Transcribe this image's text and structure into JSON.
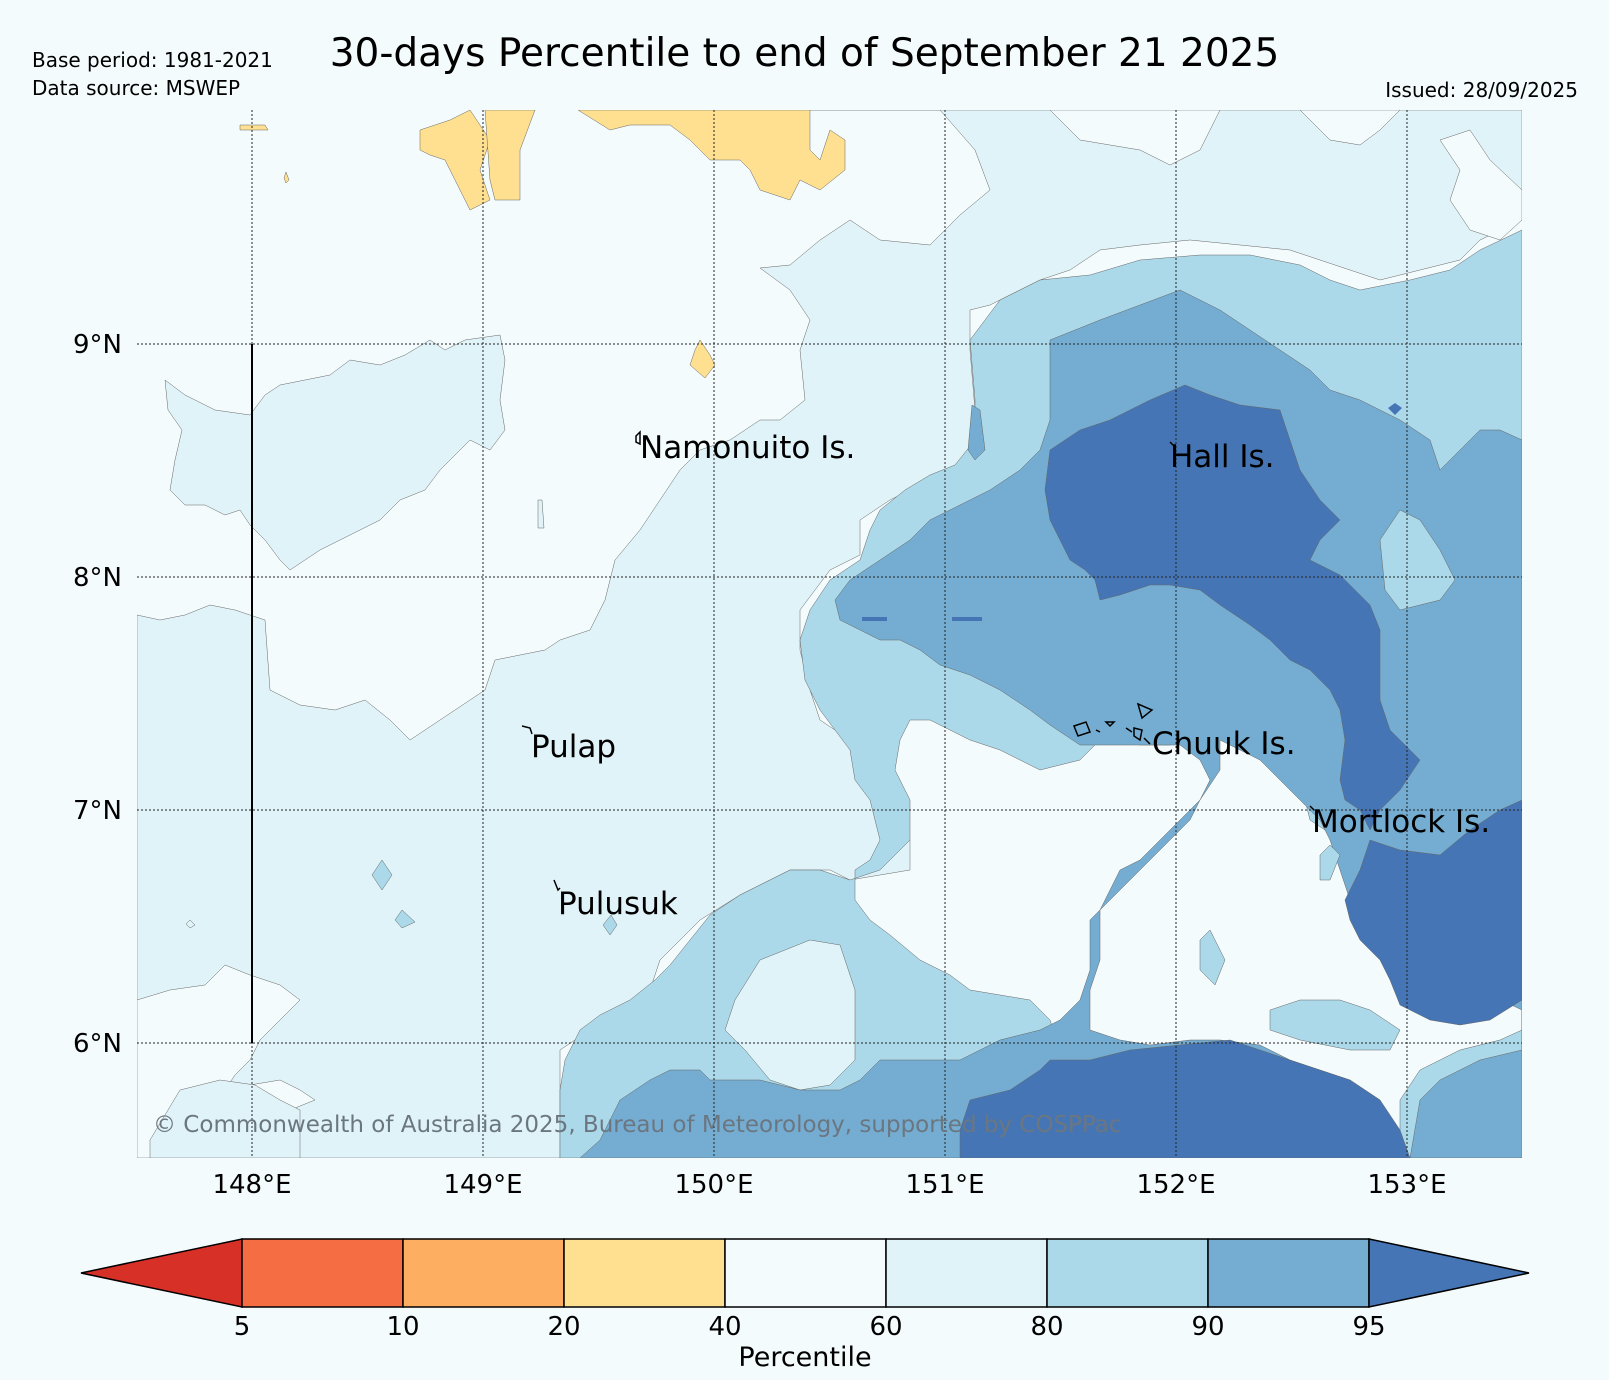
{
  "header": {
    "title": "30-days Percentile to end of September 21 2025",
    "base_period": "Base period: 1981-2021",
    "data_source": "Data source: MSWEP",
    "issued": "Issued: 28/09/2025"
  },
  "map": {
    "lat_labels": [
      "9°N",
      "8°N",
      "7°N",
      "6°N"
    ],
    "lon_labels": [
      "148°E",
      "149°E",
      "150°E",
      "151°E",
      "152°E",
      "153°E"
    ],
    "places": [
      {
        "name": "Namonuito Is."
      },
      {
        "name": "Hall Is."
      },
      {
        "name": "Pulap"
      },
      {
        "name": "Chuuk Is."
      },
      {
        "name": "Mortlock Is."
      },
      {
        "name": "Pulusuk"
      }
    ],
    "copyright": "© Commonwealth of Australia 2025, Bureau of Meteorology, supported by COSPPac"
  },
  "colorbar": {
    "label": "Percentile",
    "ticks": [
      "5",
      "10",
      "20",
      "40",
      "60",
      "80",
      "90",
      "95"
    ],
    "colors": {
      "below5": "#d73027",
      "p5_10": "#f46d43",
      "p10_20": "#fdae61",
      "p20_40": "#fee090",
      "p40_60": "#f4fbfd",
      "p60_80": "#e0f3f8",
      "p80_90": "#abd9e9",
      "p90_95": "#74add1",
      "above95": "#4575b4"
    }
  }
}
